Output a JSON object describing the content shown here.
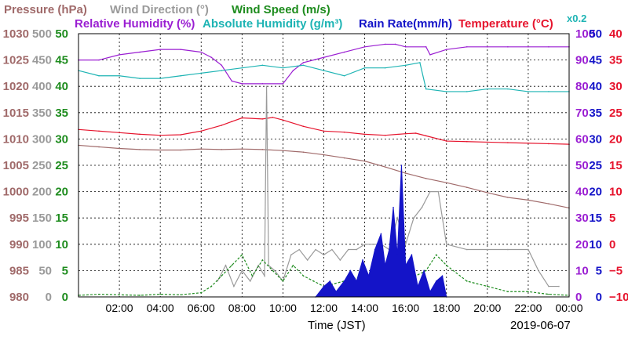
{
  "chart_data": {
    "type": "line",
    "date_label": "2019-06-07",
    "xlabel": "Time (JST)",
    "x_ticks": [
      "02:00",
      "04:00",
      "06:00",
      "08:00",
      "10:00",
      "12:00",
      "14:00",
      "16:00",
      "18:00",
      "20:00",
      "22:00",
      "00:00"
    ],
    "x_range_hours": [
      0,
      24
    ],
    "grid": true,
    "legend_row1": [
      {
        "name": "Pressure (hPa)",
        "color": "#a06a6a"
      },
      {
        "name": "Wind Direction (°)",
        "color": "#9a9a9a"
      },
      {
        "name": "Wind Speed (m/s)",
        "color": "#1e8c1e"
      }
    ],
    "legend_row2": [
      {
        "name": "Relative Humidity (%)",
        "color": "#9a1ed2"
      },
      {
        "name": "Absolute Humidity (g/m³)",
        "color": "#1eb4b4"
      },
      {
        "name": "Rain Rate(mm/h)",
        "color": "#1414c8"
      },
      {
        "name": "Temperature (°C)",
        "color": "#e6142d"
      }
    ],
    "absolute_humidity_scale_note": "x0.2",
    "axes": {
      "pressure": {
        "color": "#a06a6a",
        "ticks": [
          "980",
          "985",
          "990",
          "995",
          "1000",
          "1005",
          "1010",
          "1015",
          "1020",
          "1025",
          "1030"
        ],
        "range": [
          980,
          1030
        ]
      },
      "wind_direction": {
        "color": "#9a9a9a",
        "ticks": [
          "0",
          "50",
          "100",
          "150",
          "200",
          "250",
          "300",
          "350",
          "400",
          "450",
          "500"
        ],
        "range": [
          0,
          500
        ]
      },
      "wind_speed": {
        "color": "#1e8c1e",
        "ticks": [
          "0",
          "5",
          "10",
          "15",
          "20",
          "25",
          "30",
          "35",
          "40",
          "45",
          "50"
        ],
        "range": [
          0,
          50
        ]
      },
      "relative_humidity": {
        "color": "#9a1ed2",
        "ticks": [
          "0",
          "10",
          "20",
          "30",
          "40",
          "50",
          "60",
          "70",
          "80",
          "90",
          "100"
        ],
        "range": [
          0,
          100
        ]
      },
      "rain_rate": {
        "color": "#1414c8",
        "ticks": [
          "0",
          "5",
          "10",
          "15",
          "20",
          "25",
          "30",
          "35",
          "40",
          "45",
          "50"
        ],
        "range": [
          0,
          50
        ]
      },
      "temperature": {
        "color": "#e6142d",
        "ticks": [
          "−10",
          "−5",
          "0",
          "5",
          "10",
          "15",
          "20",
          "25",
          "30",
          "35",
          "40"
        ],
        "range": [
          -10,
          40
        ]
      }
    },
    "series": [
      {
        "name": "Pressure (hPa)",
        "axis": "pressure",
        "color": "#a06a6a",
        "x": [
          0,
          1,
          2,
          3,
          4,
          5,
          6,
          7,
          8,
          9,
          10,
          11,
          12,
          13,
          14,
          15,
          16,
          17,
          18,
          19,
          20,
          21,
          22,
          23,
          24
        ],
        "values": [
          1008.8,
          1008.5,
          1008.2,
          1008.0,
          1007.9,
          1007.9,
          1008.1,
          1008.0,
          1008.1,
          1008.0,
          1007.8,
          1007.5,
          1007.0,
          1006.4,
          1005.8,
          1004.7,
          1003.5,
          1002.5,
          1001.7,
          1000.8,
          999.8,
          998.9,
          998.4,
          997.7,
          996.9
        ]
      },
      {
        "name": "Temperature (°C)",
        "axis": "temperature",
        "color": "#e6142d",
        "x": [
          0,
          1,
          2,
          3,
          4,
          5,
          6,
          7,
          7.5,
          8,
          9,
          9.5,
          10,
          11,
          12,
          13,
          14,
          15,
          16,
          16.5,
          17,
          18,
          19,
          20,
          21,
          22,
          23,
          24
        ],
        "values": [
          21.8,
          21.5,
          21.2,
          20.9,
          20.7,
          20.8,
          21.5,
          22.6,
          23.3,
          24.0,
          23.8,
          24.1,
          23.6,
          22.4,
          21.5,
          21.3,
          20.9,
          20.7,
          21.0,
          21.1,
          20.6,
          19.6,
          19.5,
          19.4,
          19.3,
          19.2,
          19.1,
          19.0
        ]
      },
      {
        "name": "Relative Humidity (%)",
        "axis": "relative_humidity",
        "color": "#9a1ed2",
        "x": [
          0,
          1,
          2,
          3,
          4,
          5,
          6,
          6.5,
          7,
          7.5,
          8,
          9,
          10,
          10.5,
          11,
          12,
          13,
          14,
          15,
          15.5,
          16,
          17,
          17.2,
          18,
          19,
          20,
          21,
          22,
          23,
          24
        ],
        "values": [
          90,
          90,
          92,
          93,
          94,
          94,
          93,
          91,
          88,
          82,
          81,
          81,
          81,
          86,
          89,
          91,
          93,
          95,
          96,
          96,
          95,
          95,
          92,
          94,
          95,
          95,
          95,
          95,
          95,
          95
        ]
      },
      {
        "name": "Absolute Humidity (g/m³)",
        "axis": "relative_humidity",
        "color": "#1eb4b4",
        "x": [
          0,
          1,
          2,
          3,
          4,
          5,
          6,
          7,
          8,
          9,
          10,
          11,
          12,
          13,
          14,
          15,
          16,
          16.7,
          17,
          18,
          19,
          20,
          21,
          22,
          23,
          24
        ],
        "values": [
          86,
          84,
          84,
          83,
          83,
          84,
          85,
          86,
          87,
          88,
          87,
          88,
          86,
          84,
          87,
          87,
          88,
          89,
          79,
          78,
          78,
          79,
          79,
          78,
          78,
          78
        ]
      },
      {
        "name": "Wind Direction (°)",
        "axis": "wind_direction",
        "color": "#9a9a9a",
        "x": [
          6.8,
          7.2,
          7.6,
          8.0,
          8.4,
          8.8,
          9.1,
          9.2,
          9.3,
          9.6,
          10.0,
          10.4,
          10.8,
          11.2,
          11.6,
          12.0,
          12.4,
          12.8,
          13.2,
          13.6,
          14.0,
          14.4,
          14.8,
          15.2,
          15.6,
          16.0,
          16.4,
          16.8,
          17.2,
          17.6,
          18.0,
          19.0,
          20.0,
          21.0,
          22.0,
          22.5,
          23.0,
          23.5
        ],
        "values": [
          30,
          60,
          20,
          50,
          30,
          60,
          40,
          400,
          60,
          50,
          30,
          80,
          90,
          70,
          90,
          80,
          90,
          70,
          90,
          90,
          100,
          100,
          100,
          90,
          150,
          100,
          150,
          170,
          200,
          200,
          100,
          90,
          90,
          90,
          90,
          50,
          20,
          20
        ]
      },
      {
        "name": "Wind Speed (m/s)",
        "axis": "wind_speed",
        "color": "#1e8c1e",
        "x": [
          0,
          1,
          2,
          3,
          4,
          5,
          6,
          6.5,
          7,
          7.5,
          8,
          8.5,
          9,
          9.5,
          10,
          10.5,
          11,
          11.5,
          12,
          13,
          14,
          15,
          16,
          16.5,
          17,
          17.5,
          18,
          19,
          20,
          21,
          22,
          23,
          24
        ],
        "values": [
          0.3,
          0.5,
          0.4,
          0.3,
          0.5,
          0.4,
          0.8,
          2,
          4,
          6,
          8,
          4,
          7,
          5,
          3,
          6,
          4,
          3,
          2,
          3,
          4,
          3,
          3,
          4,
          5,
          8,
          6,
          3,
          2,
          1,
          1,
          0.5,
          0.3
        ]
      },
      {
        "name": "Rain Rate(mm/h)",
        "axis": "rain_rate",
        "color": "#1414c8",
        "x": [
          11.6,
          12.0,
          12.3,
          12.6,
          13.0,
          13.3,
          13.6,
          13.9,
          14.2,
          14.5,
          14.8,
          15.0,
          15.2,
          15.4,
          15.6,
          15.8,
          16.0,
          16.3,
          16.6,
          16.9,
          17.2,
          17.5,
          17.8,
          18.0
        ],
        "values": [
          0,
          2,
          3,
          1,
          3,
          5,
          3,
          7,
          4,
          9,
          12,
          6,
          9,
          17,
          8,
          25,
          6,
          8,
          2,
          5,
          1,
          3,
          4,
          0
        ]
      }
    ]
  }
}
